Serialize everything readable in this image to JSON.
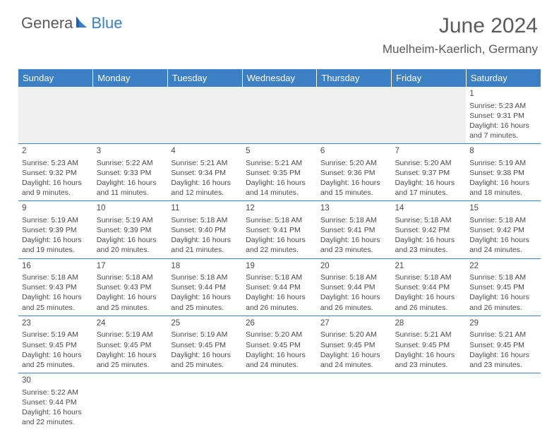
{
  "logo": {
    "part1": "Genera",
    "part2": "Blue"
  },
  "title": "June 2024",
  "location": "Muelheim-Kaerlich, Germany",
  "colors": {
    "header_bg": "#3b7fc4",
    "header_text": "#ffffff",
    "border": "#3b7fc4",
    "text": "#4a4a4a",
    "empty_bg": "#f0f0f0",
    "logo_gray": "#5a5a5a",
    "logo_blue": "#3b7fc4"
  },
  "typography": {
    "title_fontsize": 30,
    "location_fontsize": 17,
    "header_fontsize": 13,
    "cell_fontsize": 10.5,
    "daynum_fontsize": 11.5
  },
  "days_of_week": [
    "Sunday",
    "Monday",
    "Tuesday",
    "Wednesday",
    "Thursday",
    "Friday",
    "Saturday"
  ],
  "weeks": [
    [
      null,
      null,
      null,
      null,
      null,
      null,
      {
        "n": "1",
        "sr": "Sunrise: 5:23 AM",
        "ss": "Sunset: 9:31 PM",
        "dl1": "Daylight: 16 hours",
        "dl2": "and 7 minutes."
      }
    ],
    [
      {
        "n": "2",
        "sr": "Sunrise: 5:23 AM",
        "ss": "Sunset: 9:32 PM",
        "dl1": "Daylight: 16 hours",
        "dl2": "and 9 minutes."
      },
      {
        "n": "3",
        "sr": "Sunrise: 5:22 AM",
        "ss": "Sunset: 9:33 PM",
        "dl1": "Daylight: 16 hours",
        "dl2": "and 11 minutes."
      },
      {
        "n": "4",
        "sr": "Sunrise: 5:21 AM",
        "ss": "Sunset: 9:34 PM",
        "dl1": "Daylight: 16 hours",
        "dl2": "and 12 minutes."
      },
      {
        "n": "5",
        "sr": "Sunrise: 5:21 AM",
        "ss": "Sunset: 9:35 PM",
        "dl1": "Daylight: 16 hours",
        "dl2": "and 14 minutes."
      },
      {
        "n": "6",
        "sr": "Sunrise: 5:20 AM",
        "ss": "Sunset: 9:36 PM",
        "dl1": "Daylight: 16 hours",
        "dl2": "and 15 minutes."
      },
      {
        "n": "7",
        "sr": "Sunrise: 5:20 AM",
        "ss": "Sunset: 9:37 PM",
        "dl1": "Daylight: 16 hours",
        "dl2": "and 17 minutes."
      },
      {
        "n": "8",
        "sr": "Sunrise: 5:19 AM",
        "ss": "Sunset: 9:38 PM",
        "dl1": "Daylight: 16 hours",
        "dl2": "and 18 minutes."
      }
    ],
    [
      {
        "n": "9",
        "sr": "Sunrise: 5:19 AM",
        "ss": "Sunset: 9:39 PM",
        "dl1": "Daylight: 16 hours",
        "dl2": "and 19 minutes."
      },
      {
        "n": "10",
        "sr": "Sunrise: 5:19 AM",
        "ss": "Sunset: 9:39 PM",
        "dl1": "Daylight: 16 hours",
        "dl2": "and 20 minutes."
      },
      {
        "n": "11",
        "sr": "Sunrise: 5:18 AM",
        "ss": "Sunset: 9:40 PM",
        "dl1": "Daylight: 16 hours",
        "dl2": "and 21 minutes."
      },
      {
        "n": "12",
        "sr": "Sunrise: 5:18 AM",
        "ss": "Sunset: 9:41 PM",
        "dl1": "Daylight: 16 hours",
        "dl2": "and 22 minutes."
      },
      {
        "n": "13",
        "sr": "Sunrise: 5:18 AM",
        "ss": "Sunset: 9:41 PM",
        "dl1": "Daylight: 16 hours",
        "dl2": "and 23 minutes."
      },
      {
        "n": "14",
        "sr": "Sunrise: 5:18 AM",
        "ss": "Sunset: 9:42 PM",
        "dl1": "Daylight: 16 hours",
        "dl2": "and 23 minutes."
      },
      {
        "n": "15",
        "sr": "Sunrise: 5:18 AM",
        "ss": "Sunset: 9:42 PM",
        "dl1": "Daylight: 16 hours",
        "dl2": "and 24 minutes."
      }
    ],
    [
      {
        "n": "16",
        "sr": "Sunrise: 5:18 AM",
        "ss": "Sunset: 9:43 PM",
        "dl1": "Daylight: 16 hours",
        "dl2": "and 25 minutes."
      },
      {
        "n": "17",
        "sr": "Sunrise: 5:18 AM",
        "ss": "Sunset: 9:43 PM",
        "dl1": "Daylight: 16 hours",
        "dl2": "and 25 minutes."
      },
      {
        "n": "18",
        "sr": "Sunrise: 5:18 AM",
        "ss": "Sunset: 9:44 PM",
        "dl1": "Daylight: 16 hours",
        "dl2": "and 25 minutes."
      },
      {
        "n": "19",
        "sr": "Sunrise: 5:18 AM",
        "ss": "Sunset: 9:44 PM",
        "dl1": "Daylight: 16 hours",
        "dl2": "and 26 minutes."
      },
      {
        "n": "20",
        "sr": "Sunrise: 5:18 AM",
        "ss": "Sunset: 9:44 PM",
        "dl1": "Daylight: 16 hours",
        "dl2": "and 26 minutes."
      },
      {
        "n": "21",
        "sr": "Sunrise: 5:18 AM",
        "ss": "Sunset: 9:44 PM",
        "dl1": "Daylight: 16 hours",
        "dl2": "and 26 minutes."
      },
      {
        "n": "22",
        "sr": "Sunrise: 5:18 AM",
        "ss": "Sunset: 9:45 PM",
        "dl1": "Daylight: 16 hours",
        "dl2": "and 26 minutes."
      }
    ],
    [
      {
        "n": "23",
        "sr": "Sunrise: 5:19 AM",
        "ss": "Sunset: 9:45 PM",
        "dl1": "Daylight: 16 hours",
        "dl2": "and 25 minutes."
      },
      {
        "n": "24",
        "sr": "Sunrise: 5:19 AM",
        "ss": "Sunset: 9:45 PM",
        "dl1": "Daylight: 16 hours",
        "dl2": "and 25 minutes."
      },
      {
        "n": "25",
        "sr": "Sunrise: 5:19 AM",
        "ss": "Sunset: 9:45 PM",
        "dl1": "Daylight: 16 hours",
        "dl2": "and 25 minutes."
      },
      {
        "n": "26",
        "sr": "Sunrise: 5:20 AM",
        "ss": "Sunset: 9:45 PM",
        "dl1": "Daylight: 16 hours",
        "dl2": "and 24 minutes."
      },
      {
        "n": "27",
        "sr": "Sunrise: 5:20 AM",
        "ss": "Sunset: 9:45 PM",
        "dl1": "Daylight: 16 hours",
        "dl2": "and 24 minutes."
      },
      {
        "n": "28",
        "sr": "Sunrise: 5:21 AM",
        "ss": "Sunset: 9:45 PM",
        "dl1": "Daylight: 16 hours",
        "dl2": "and 23 minutes."
      },
      {
        "n": "29",
        "sr": "Sunrise: 5:21 AM",
        "ss": "Sunset: 9:45 PM",
        "dl1": "Daylight: 16 hours",
        "dl2": "and 23 minutes."
      }
    ],
    [
      {
        "n": "30",
        "sr": "Sunrise: 5:22 AM",
        "ss": "Sunset: 9:44 PM",
        "dl1": "Daylight: 16 hours",
        "dl2": "and 22 minutes."
      },
      null,
      null,
      null,
      null,
      null,
      null
    ]
  ]
}
